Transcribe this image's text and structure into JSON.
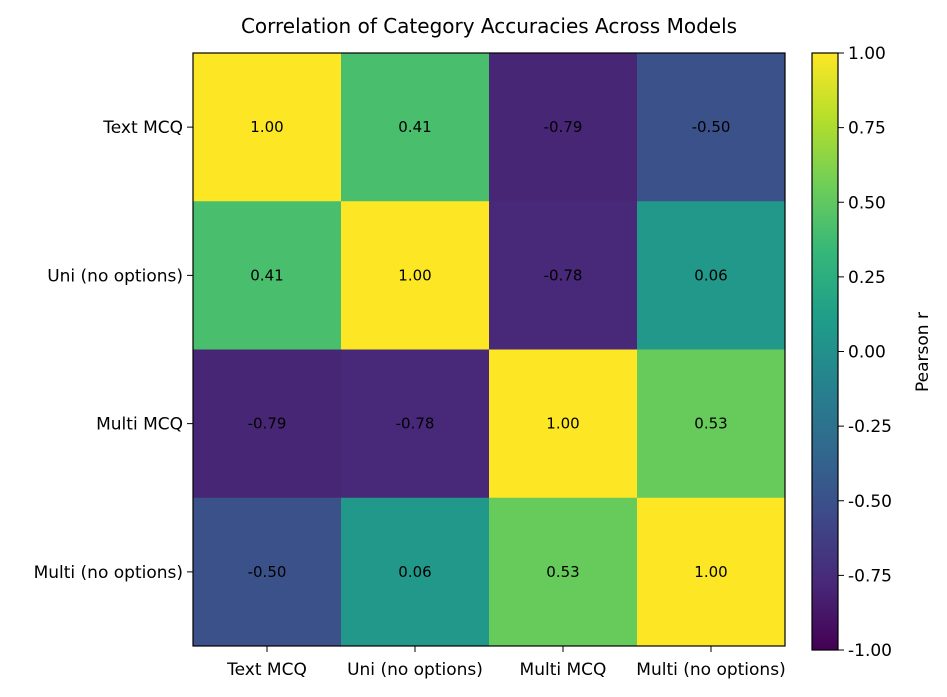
{
  "chart_data": {
    "type": "heatmap",
    "title": "Correlation of Category Accuracies Across Models",
    "x_categories": [
      "Text MCQ",
      "Uni (no options)",
      "Multi MCQ",
      "Multi (no options)"
    ],
    "y_categories": [
      "Text MCQ",
      "Uni (no options)",
      "Multi MCQ",
      "Multi (no options)"
    ],
    "values": [
      [
        1.0,
        0.41,
        -0.79,
        -0.5
      ],
      [
        0.41,
        1.0,
        -0.78,
        0.06
      ],
      [
        -0.79,
        -0.78,
        1.0,
        0.53
      ],
      [
        -0.5,
        0.06,
        0.53,
        1.0
      ]
    ],
    "value_labels": [
      [
        "1.00",
        "0.41",
        "-0.79",
        "-0.50"
      ],
      [
        "0.41",
        "1.00",
        "-0.78",
        "0.06"
      ],
      [
        "-0.79",
        "-0.78",
        "1.00",
        "0.53"
      ],
      [
        "-0.50",
        "0.06",
        "0.53",
        "1.00"
      ]
    ],
    "colorbar": {
      "label": "Pearson r",
      "range": [
        -1.0,
        1.0
      ],
      "ticks": [
        1.0,
        0.75,
        0.5,
        0.25,
        0.0,
        -0.25,
        -0.5,
        -0.75,
        -1.0
      ],
      "tick_labels": [
        "1.00",
        "0.75",
        "0.50",
        "0.25",
        "0.00",
        "-0.25",
        "-0.50",
        "-0.75",
        "-1.00"
      ]
    },
    "colormap": "viridis",
    "colormap_stops": [
      "#440154",
      "#482878",
      "#3e4989",
      "#31688e",
      "#26828e",
      "#1f9e89",
      "#35b779",
      "#6ece58",
      "#b5de2b",
      "#fde725"
    ],
    "grid": false
  }
}
